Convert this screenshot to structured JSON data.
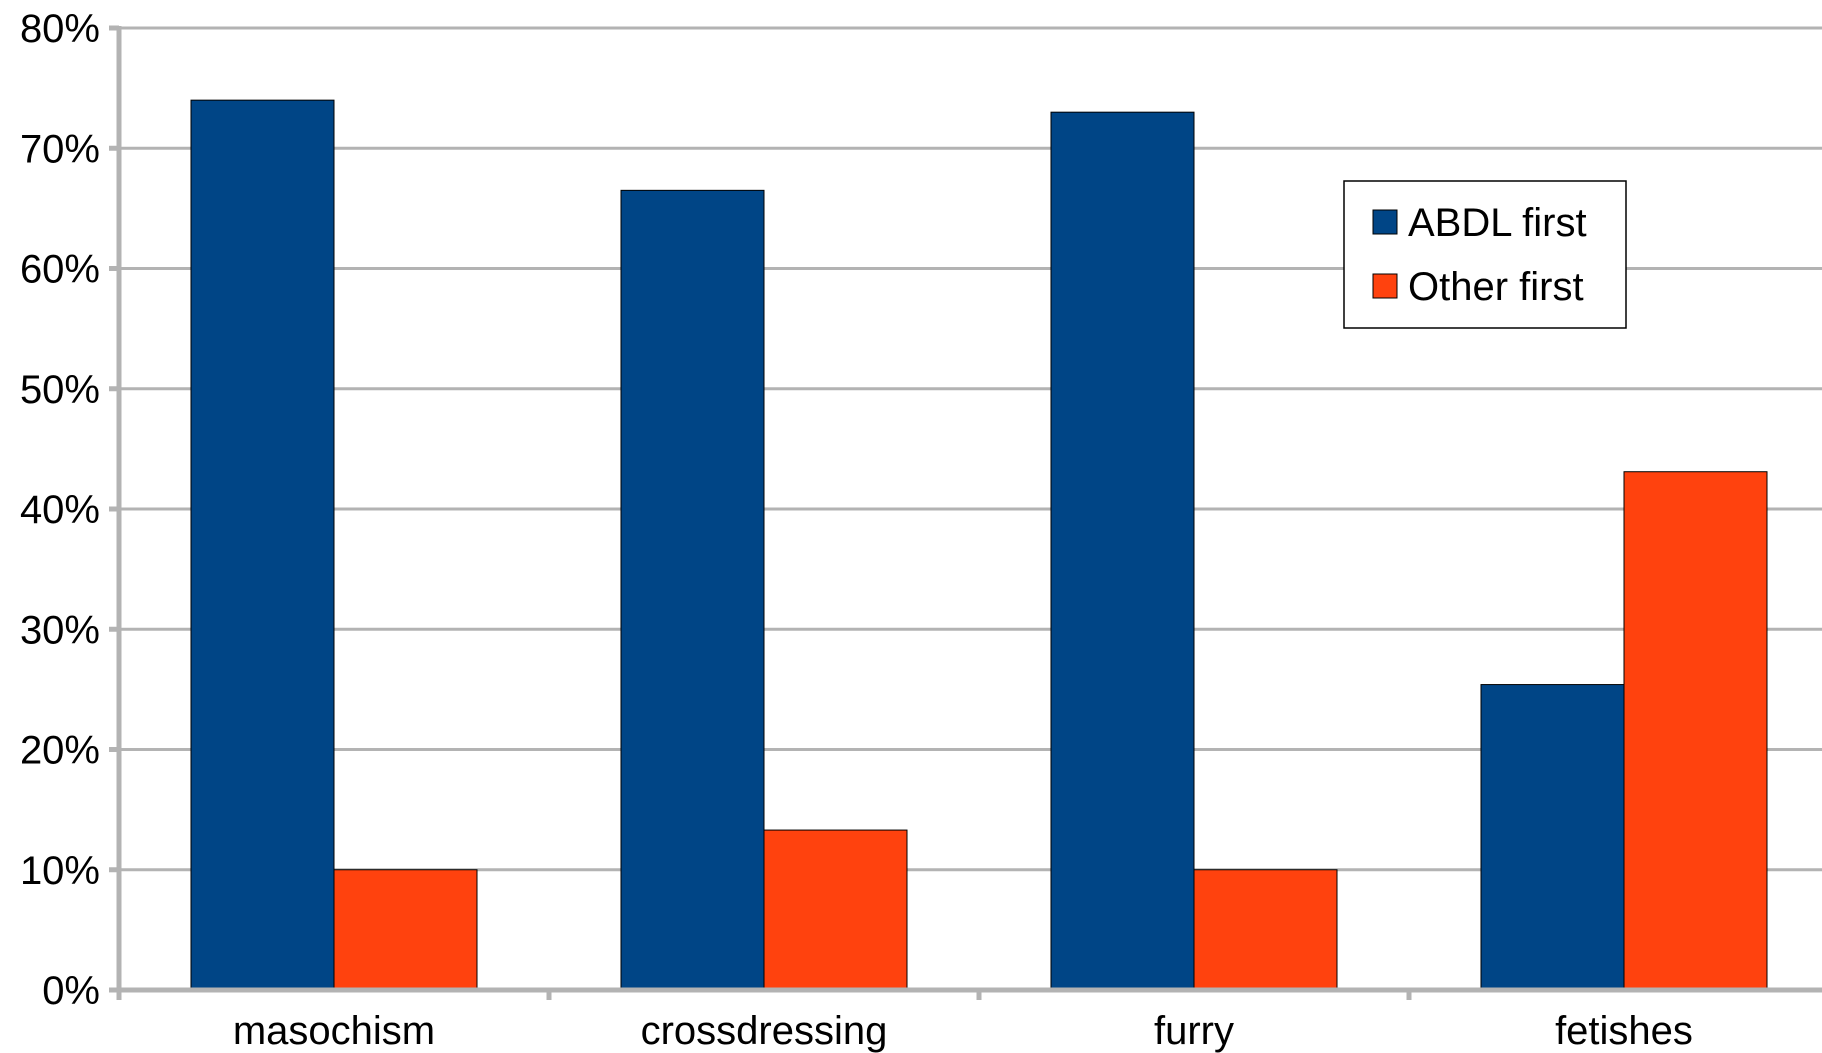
{
  "chart_data": {
    "type": "bar",
    "title": "",
    "xlabel": "",
    "ylabel": "",
    "categories": [
      "masochism",
      "crossdressing",
      "furry",
      "fetishes"
    ],
    "series": [
      {
        "name": "ABDL first",
        "values": [
          74,
          66.5,
          73,
          25.4
        ],
        "color": "#004586"
      },
      {
        "name": "Other first",
        "values": [
          10,
          13.3,
          10,
          43.1
        ],
        "color": "#ff420e"
      }
    ],
    "ylim": [
      0,
      80
    ],
    "yticks": [
      0,
      10,
      20,
      30,
      40,
      50,
      60,
      70,
      80
    ],
    "ytick_labels": [
      "0%",
      "10%",
      "20%",
      "30%",
      "40%",
      "50%",
      "60%",
      "70%",
      "80%"
    ],
    "grid": true,
    "legend_position": "top-right"
  }
}
